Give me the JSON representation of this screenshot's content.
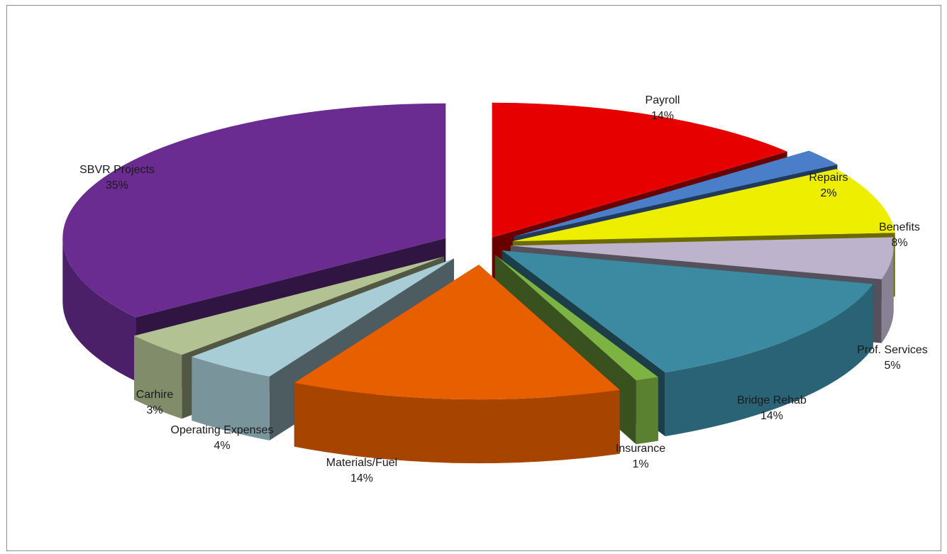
{
  "chart_data": {
    "type": "pie",
    "variant": "3d-exploded",
    "title": "",
    "legend": "none",
    "slices": [
      {
        "label": "Payroll",
        "pct_label": "14%",
        "value": 14,
        "color": "#e60000"
      },
      {
        "label": "Repairs",
        "pct_label": "2%",
        "value": 2,
        "color": "#4a7ec8"
      },
      {
        "label": "Benefits",
        "pct_label": "8%",
        "value": 8,
        "color": "#eeee00"
      },
      {
        "label": "Prof. Services",
        "pct_label": "5%",
        "value": 5,
        "color": "#bdb3cc"
      },
      {
        "label": "Bridge Rehab",
        "pct_label": "14%",
        "value": 14,
        "color": "#3b8aa2"
      },
      {
        "label": "Insurance",
        "pct_label": "1%",
        "value": 1,
        "color": "#7cb343"
      },
      {
        "label": "Materials/Fuel",
        "pct_label": "14%",
        "value": 14,
        "color": "#e85f00"
      },
      {
        "label": "Operating Expenses",
        "pct_label": "4%",
        "value": 4,
        "color": "#a8cdd6"
      },
      {
        "label": "Carhire",
        "pct_label": "3%",
        "value": 3,
        "color": "#b3c293"
      },
      {
        "label": "SBVR Projects",
        "pct_label": "35%",
        "value": 35,
        "color": "#6a2c91"
      }
    ]
  }
}
